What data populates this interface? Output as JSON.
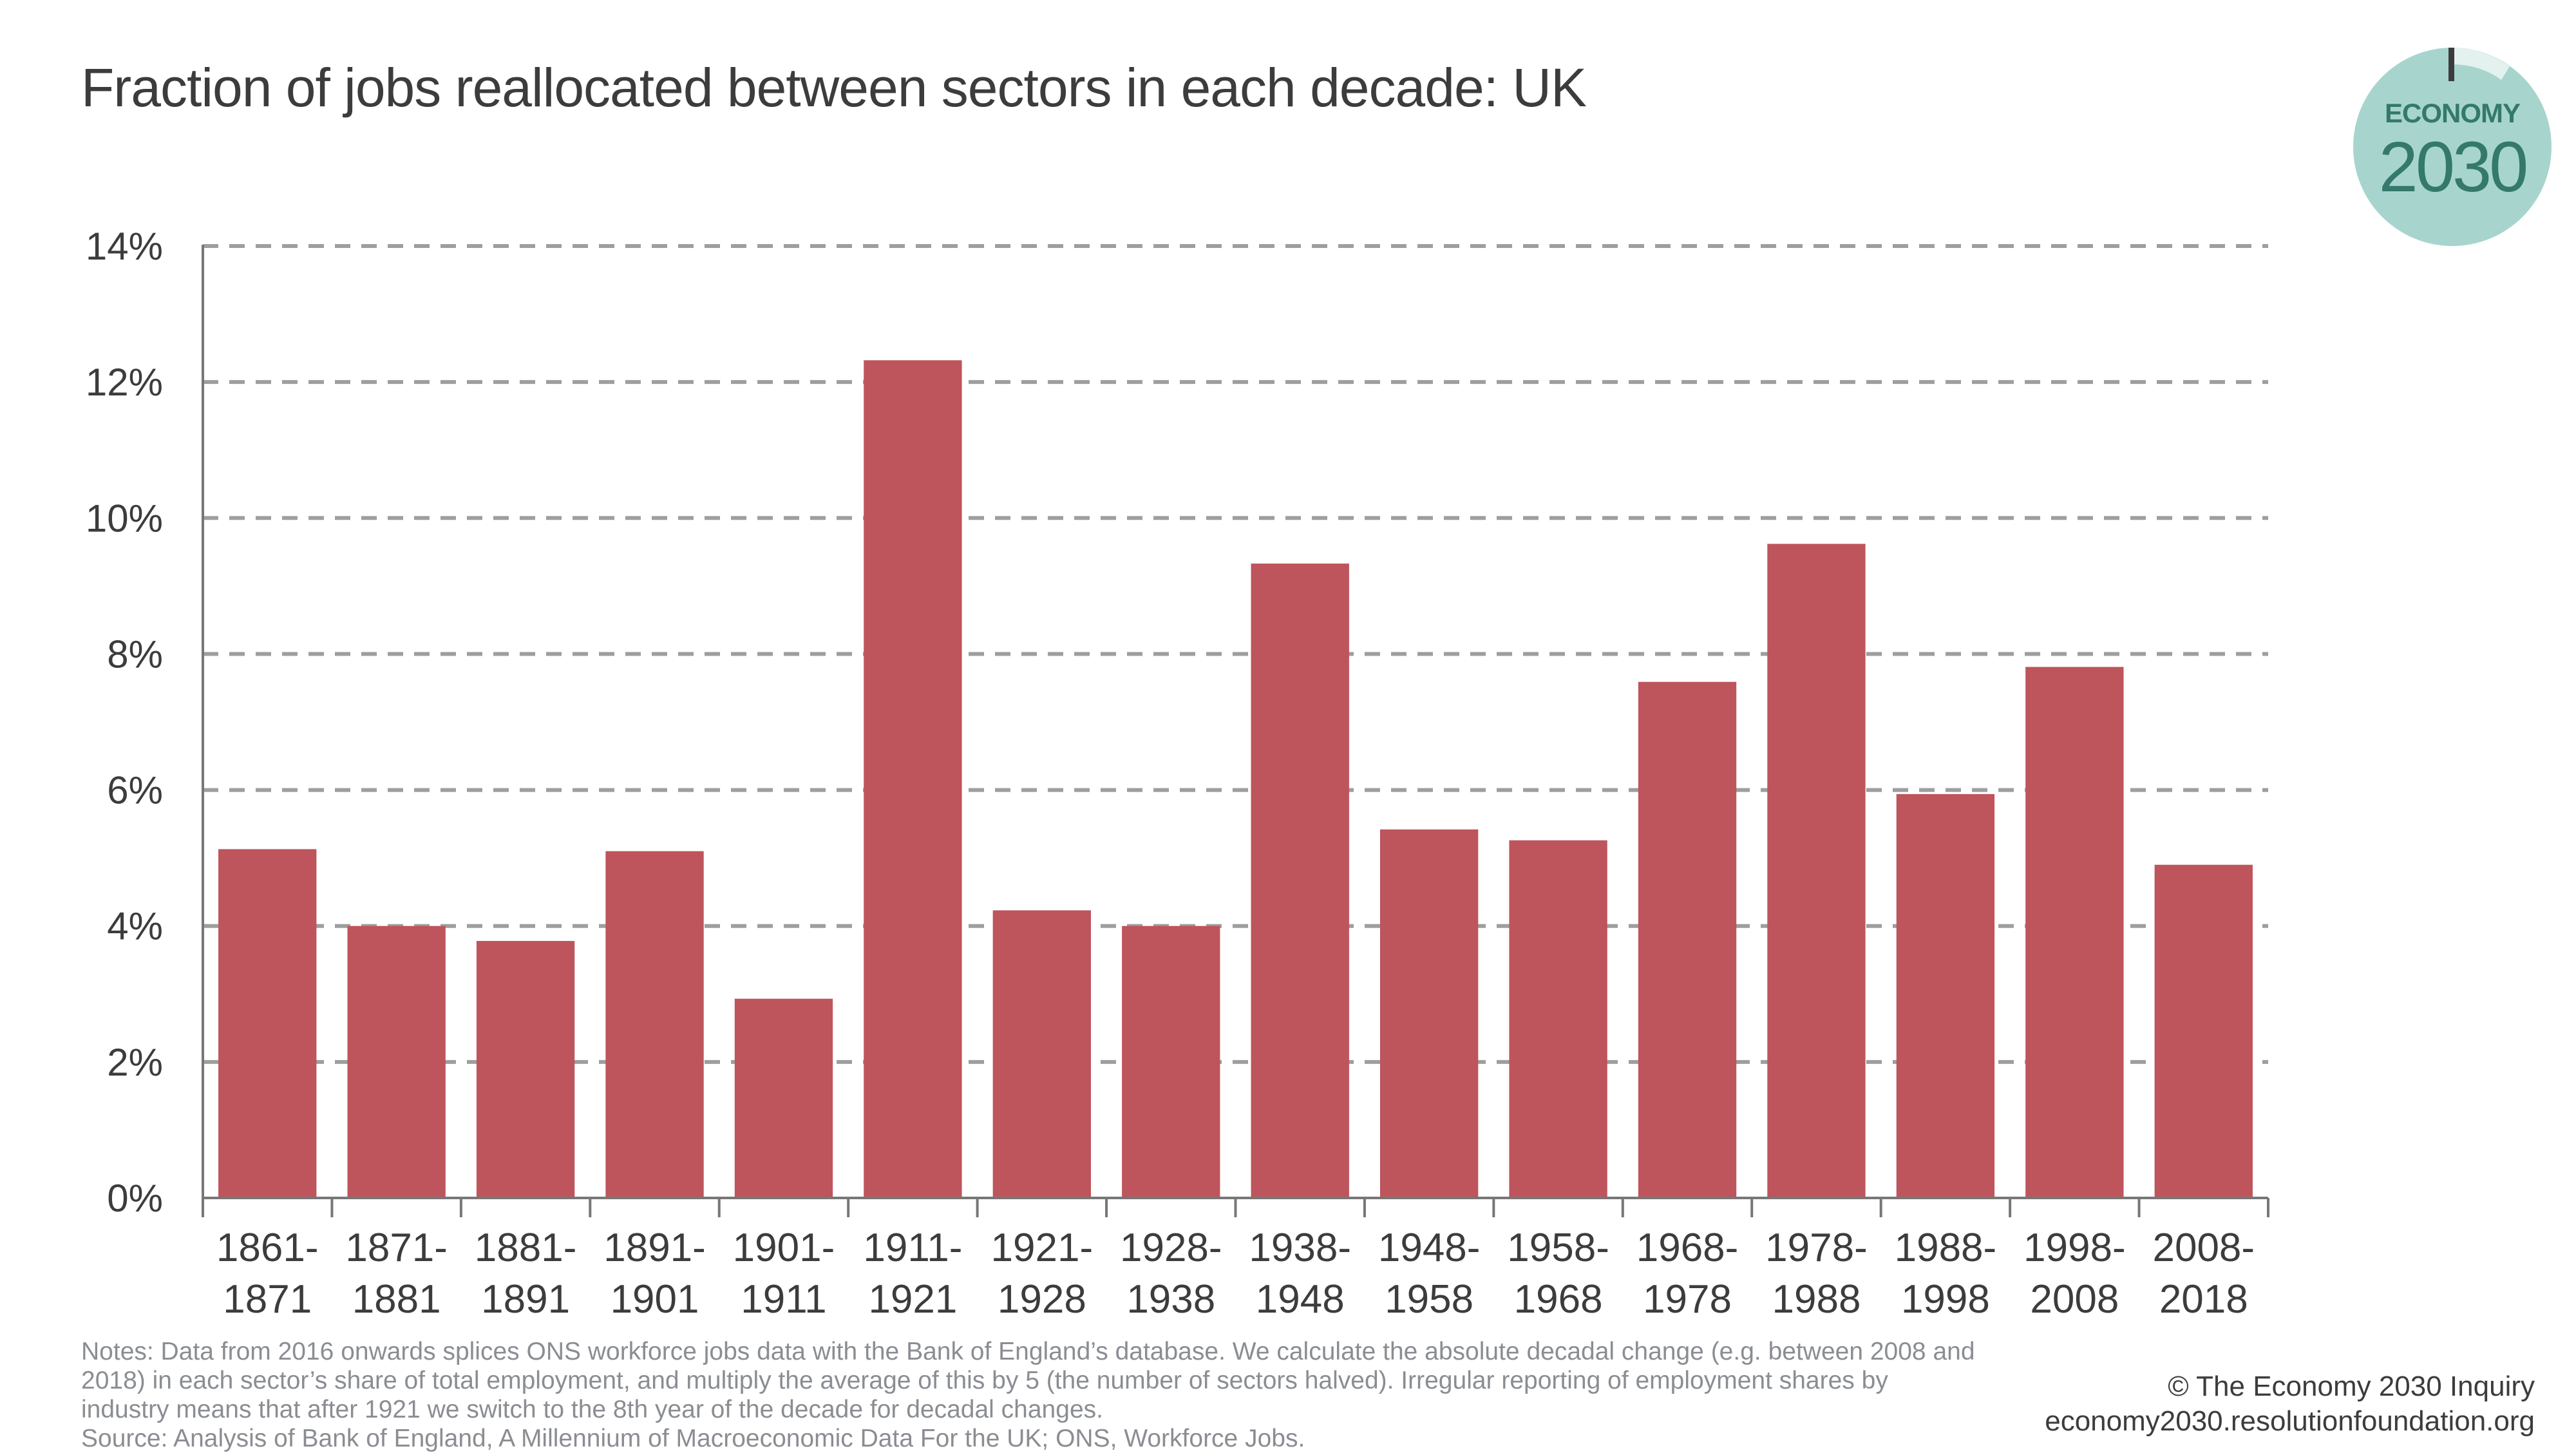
{
  "header": {
    "title": "Fraction of jobs reallocated between sectors in each decade: UK"
  },
  "logo": {
    "word": "ECONOMY",
    "year": "2030",
    "icon": "economy-2030-clock-logo",
    "color_fill": "#a7d5cd",
    "color_text": "#34796b",
    "color_arc": "#e3f1ef",
    "color_tick": "#3c3c3c"
  },
  "chart_data": {
    "type": "bar",
    "title": "Fraction of jobs reallocated between sectors in each decade: UK",
    "xlabel": "",
    "ylabel": "",
    "ylim": [
      0,
      14
    ],
    "yticks": [
      0,
      2,
      4,
      6,
      8,
      10,
      12,
      14
    ],
    "ytick_labels": [
      "0%",
      "2%",
      "4%",
      "6%",
      "8%",
      "10%",
      "12%",
      "14%"
    ],
    "grid": "horizontal dashed",
    "legend": "none",
    "bar_color": "#be545c",
    "categories": [
      [
        "1861-",
        "1871"
      ],
      [
        "1871-",
        "1881"
      ],
      [
        "1881-",
        "1891"
      ],
      [
        "1891-",
        "1901"
      ],
      [
        "1901-",
        "1911"
      ],
      [
        "1911-",
        "1921"
      ],
      [
        "1921-",
        "1928"
      ],
      [
        "1928-",
        "1938"
      ],
      [
        "1938-",
        "1948"
      ],
      [
        "1948-",
        "1958"
      ],
      [
        "1958-",
        "1968"
      ],
      [
        "1968-",
        "1978"
      ],
      [
        "1978-",
        "1988"
      ],
      [
        "1988-",
        "1998"
      ],
      [
        "1998-",
        "2008"
      ],
      [
        "2008-",
        "2018"
      ]
    ],
    "values": [
      5.13,
      4.0,
      3.78,
      5.1,
      2.93,
      12.32,
      4.23,
      4.0,
      9.33,
      5.42,
      5.26,
      7.59,
      9.62,
      5.94,
      7.81,
      4.9
    ],
    "unit": "%"
  },
  "footer": {
    "notes": [
      "Notes: Data from 2016 onwards splices ONS workforce jobs data with the Bank of England’s database. We calculate the absolute decadal change (e.g. between 2008 and",
      "2018) in each sector’s share of total employment, and multiply the average of this by 5 (the number of sectors halved). Irregular reporting of employment shares by",
      "industry means that after 1921 we switch to the 8th year of the decade for decadal changes.",
      "Source: Analysis of Bank of England, A Millennium of Macroeconomic Data For the UK; ONS, Workforce Jobs."
    ],
    "copyright": "© The Economy 2030 Inquiry",
    "website": "economy2030.resolutionfoundation.org"
  }
}
